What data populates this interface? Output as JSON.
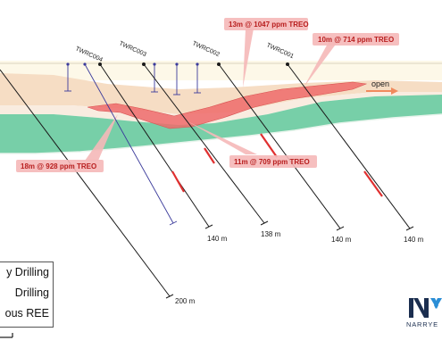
{
  "colors": {
    "sky": "#fdf8e8",
    "upper_band": "#f6ddc4",
    "mid_band": "#f9ece0",
    "green_band": "#77cfa8",
    "mineralised": "#ef6b6b",
    "callout_fill": "#f5b8b8",
    "callout_text": "#b81e1e",
    "hole": "#1a1a1a",
    "historic_hole": "#3b3b9b",
    "logo_navy": "#1b2e4f",
    "logo_blue": "#2b8ed6"
  },
  "holes": [
    {
      "id": "twrc004",
      "name": "TWRC004",
      "depth_label": "140 m"
    },
    {
      "id": "twrc003",
      "name": "TWRC003",
      "depth_label": "138 m"
    },
    {
      "id": "twrc002",
      "name": "TWRC002",
      "depth_label": "140 m"
    },
    {
      "id": "twrc001",
      "name": "TWRC001",
      "depth_label": "140 m"
    },
    {
      "id": "far-left",
      "name": "",
      "depth_label": "200 m"
    }
  ],
  "intercepts": [
    {
      "id": "twrc002",
      "text": "13m @ 1047 ppm TREO"
    },
    {
      "id": "twrc001",
      "text": "10m @ 714 ppm TREO"
    },
    {
      "id": "twrc004",
      "text": "18m @ 928 ppm TREO"
    },
    {
      "id": "twrc003",
      "text": "11m @ 709 ppm TREO"
    }
  ],
  "open_label": "open",
  "legend": {
    "items": [
      "y Drilling",
      "Drilling",
      "ous REE"
    ]
  },
  "logo": {
    "text": "NARRYE"
  }
}
